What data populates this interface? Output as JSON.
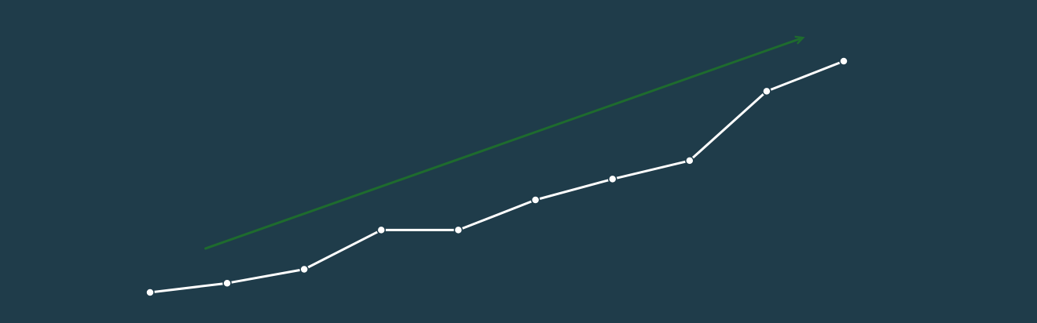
{
  "chart_data": {
    "type": "line",
    "title": "",
    "xlabel": "",
    "ylabel": "",
    "grid": false,
    "legend": "none",
    "x": [
      1,
      2,
      3,
      4,
      5,
      6,
      7,
      8,
      9,
      10
    ],
    "xlim": [
      1,
      10
    ],
    "ylim": [
      0,
      100
    ],
    "series": [
      {
        "values": [
          0,
          4,
          10,
          27,
          27,
          40,
          49,
          57,
          87,
          100
        ],
        "color": "#ffffff"
      }
    ],
    "trend_arrow": {
      "from": [
        1.72,
        19
      ],
      "to": [
        9.46,
        110
      ],
      "color": "#1e6b2e"
    }
  },
  "colors": {
    "background": "#1f3c4a",
    "line": "#ffffff",
    "trend": "#1e6b2e"
  }
}
